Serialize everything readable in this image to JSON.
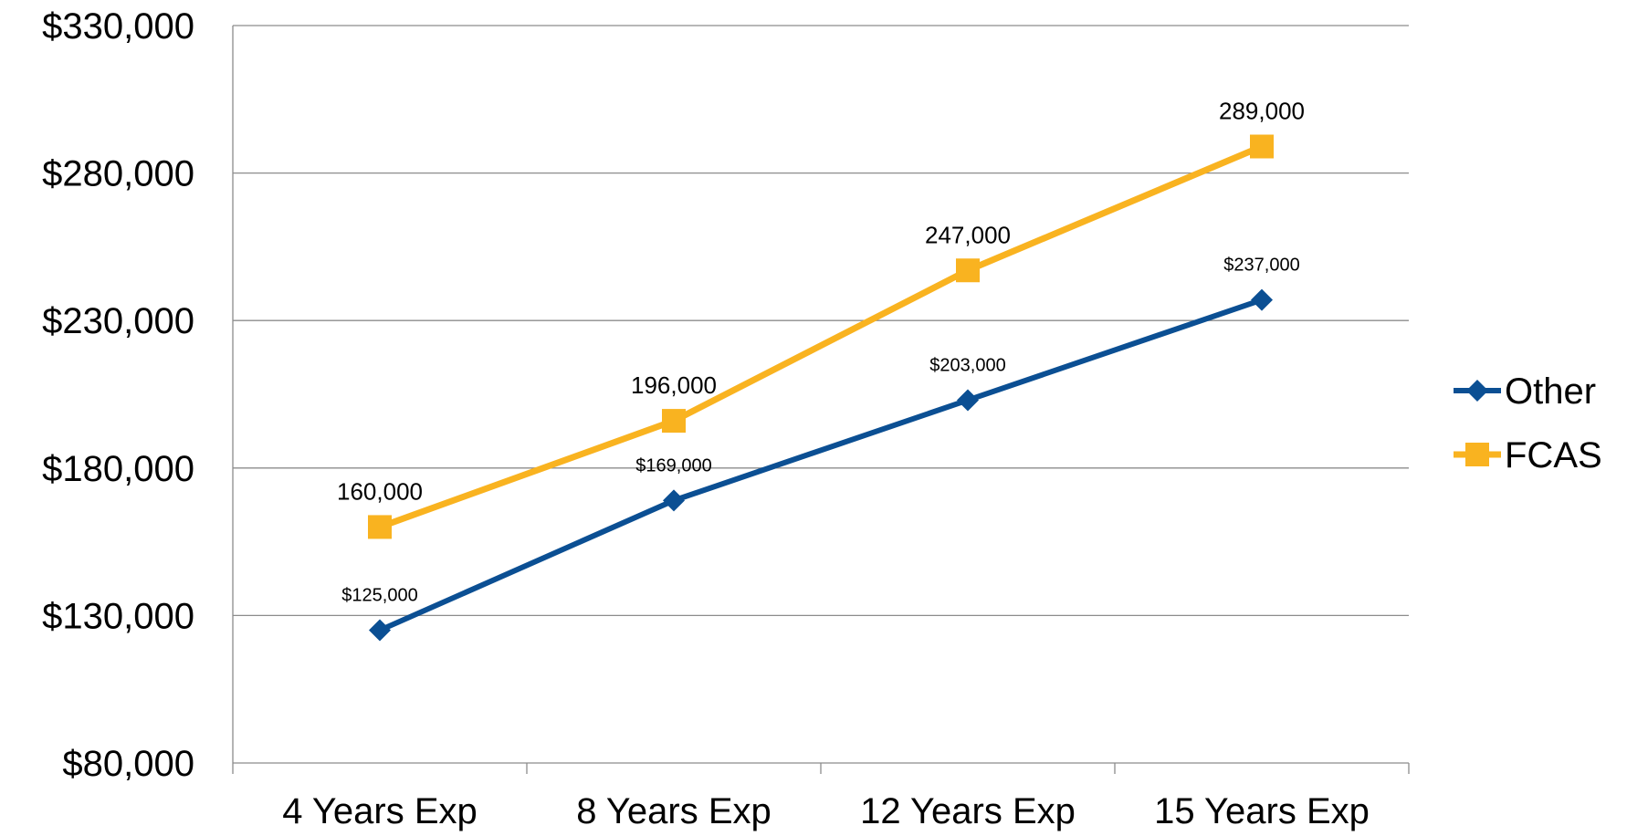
{
  "chart_data": {
    "type": "line",
    "title": "",
    "xlabel": "",
    "ylabel": "",
    "categories": [
      "4 Years Exp",
      "8 Years Exp",
      "12 Years Exp",
      "15 Years Exp"
    ],
    "ylim": [
      80000,
      330000
    ],
    "y_ticks": [
      80000,
      130000,
      180000,
      230000,
      280000,
      330000
    ],
    "y_tick_labels": [
      "$80,000",
      "$130,000",
      "$180,000",
      "$230,000",
      "$280,000",
      "$330,000"
    ],
    "grid": true,
    "legend_position": "right",
    "series": [
      {
        "name": "Other",
        "values": [
          125000,
          169000,
          203000,
          237000
        ],
        "data_labels": [
          "$125,000",
          "$169,000",
          "$203,000",
          "$237,000"
        ],
        "color": "#0B4F93",
        "marker": "diamond"
      },
      {
        "name": "FCAS",
        "values": [
          160000,
          196000,
          247000,
          289000
        ],
        "data_labels": [
          "160,000",
          "196,000",
          "247,000",
          "289,000"
        ],
        "color": "#F9B320",
        "marker": "square"
      }
    ]
  }
}
